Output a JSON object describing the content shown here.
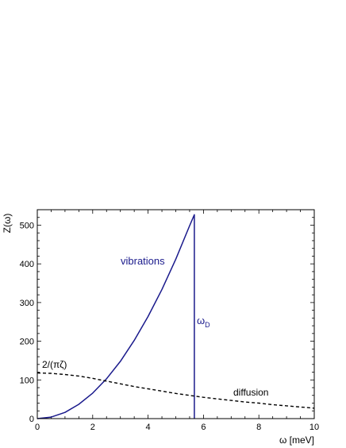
{
  "chart_data": {
    "type": "line",
    "title": "",
    "xlabel": "ω [meV]",
    "ylabel": "Z(ω)",
    "xlim": [
      0,
      10
    ],
    "ylim": [
      0,
      540
    ],
    "x_ticks": [
      0,
      2,
      4,
      6,
      8,
      10
    ],
    "y_ticks": [
      0,
      100,
      200,
      300,
      400,
      500
    ],
    "x_tick_labels": [
      "0",
      "2",
      "4",
      "6",
      "8",
      "10"
    ],
    "y_tick_labels": [
      "0",
      "100",
      "200",
      "300",
      "400",
      "500"
    ],
    "grid": false,
    "legend": "none",
    "series": [
      {
        "name": "vibrations",
        "color": "#1a1a8c",
        "style": "solid",
        "x": [
          0,
          0.5,
          1,
          1.5,
          2,
          2.5,
          3,
          3.5,
          4,
          4.5,
          5,
          5.5,
          5.67,
          5.67
        ],
        "y": [
          0,
          4,
          16,
          37,
          66,
          103,
          148,
          202,
          264,
          334,
          412,
          499,
          527,
          0
        ]
      },
      {
        "name": "diffusion",
        "color": "#000000",
        "style": "dashed",
        "x": [
          0,
          0.5,
          1,
          1.5,
          2,
          2.5,
          3,
          3.5,
          4,
          4.5,
          5,
          5.5,
          6,
          6.5,
          7,
          7.5,
          8,
          8.5,
          9,
          9.5,
          10
        ],
        "y": [
          118,
          117,
          114,
          110,
          104,
          97,
          90,
          83,
          77,
          71,
          65,
          60,
          55,
          51,
          47,
          43,
          40,
          36,
          33,
          30,
          27
        ]
      }
    ],
    "annotations": {
      "vibrations": "vibrations",
      "omega_d": "ω",
      "omega_d_sub": "D",
      "diffusion": "diffusion",
      "limit": "2/(πζ)"
    }
  }
}
